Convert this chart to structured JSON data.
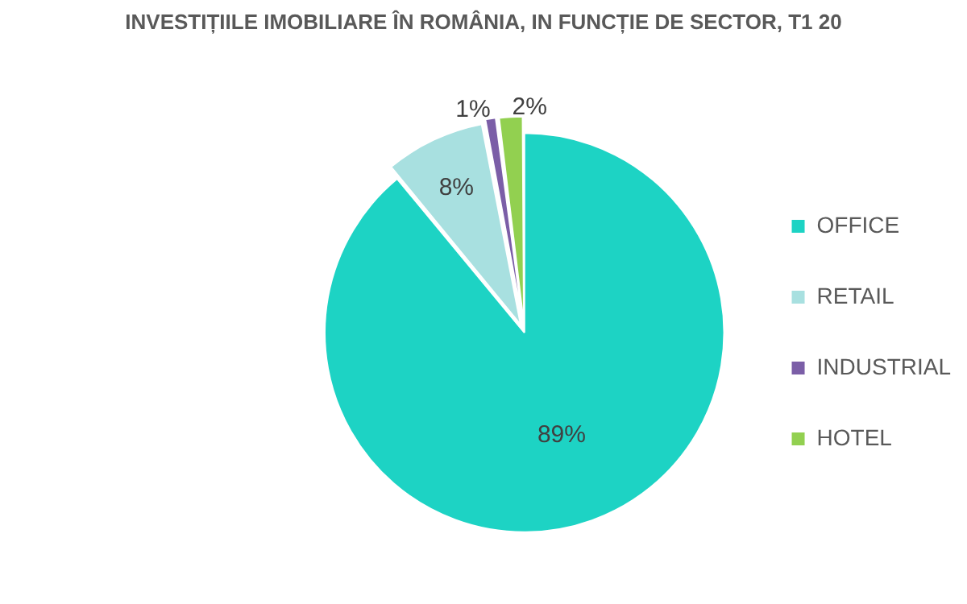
{
  "chart_data": {
    "type": "pie",
    "title": "INVESTIȚIILE IMOBILIARE ÎN ROMÂNIA, IN FUNCȚIE DE SECTOR, T1 20",
    "categories": [
      "OFFICE",
      "RETAIL",
      "INDUSTRIAL",
      "HOTEL"
    ],
    "values": [
      89,
      8,
      1,
      2
    ],
    "colors": [
      "#1dd3c4",
      "#a8e0e0",
      "#7b5ea7",
      "#92d050"
    ],
    "value_labels": [
      "89%",
      "8%",
      "1%",
      "2%"
    ],
    "legend": "right"
  }
}
